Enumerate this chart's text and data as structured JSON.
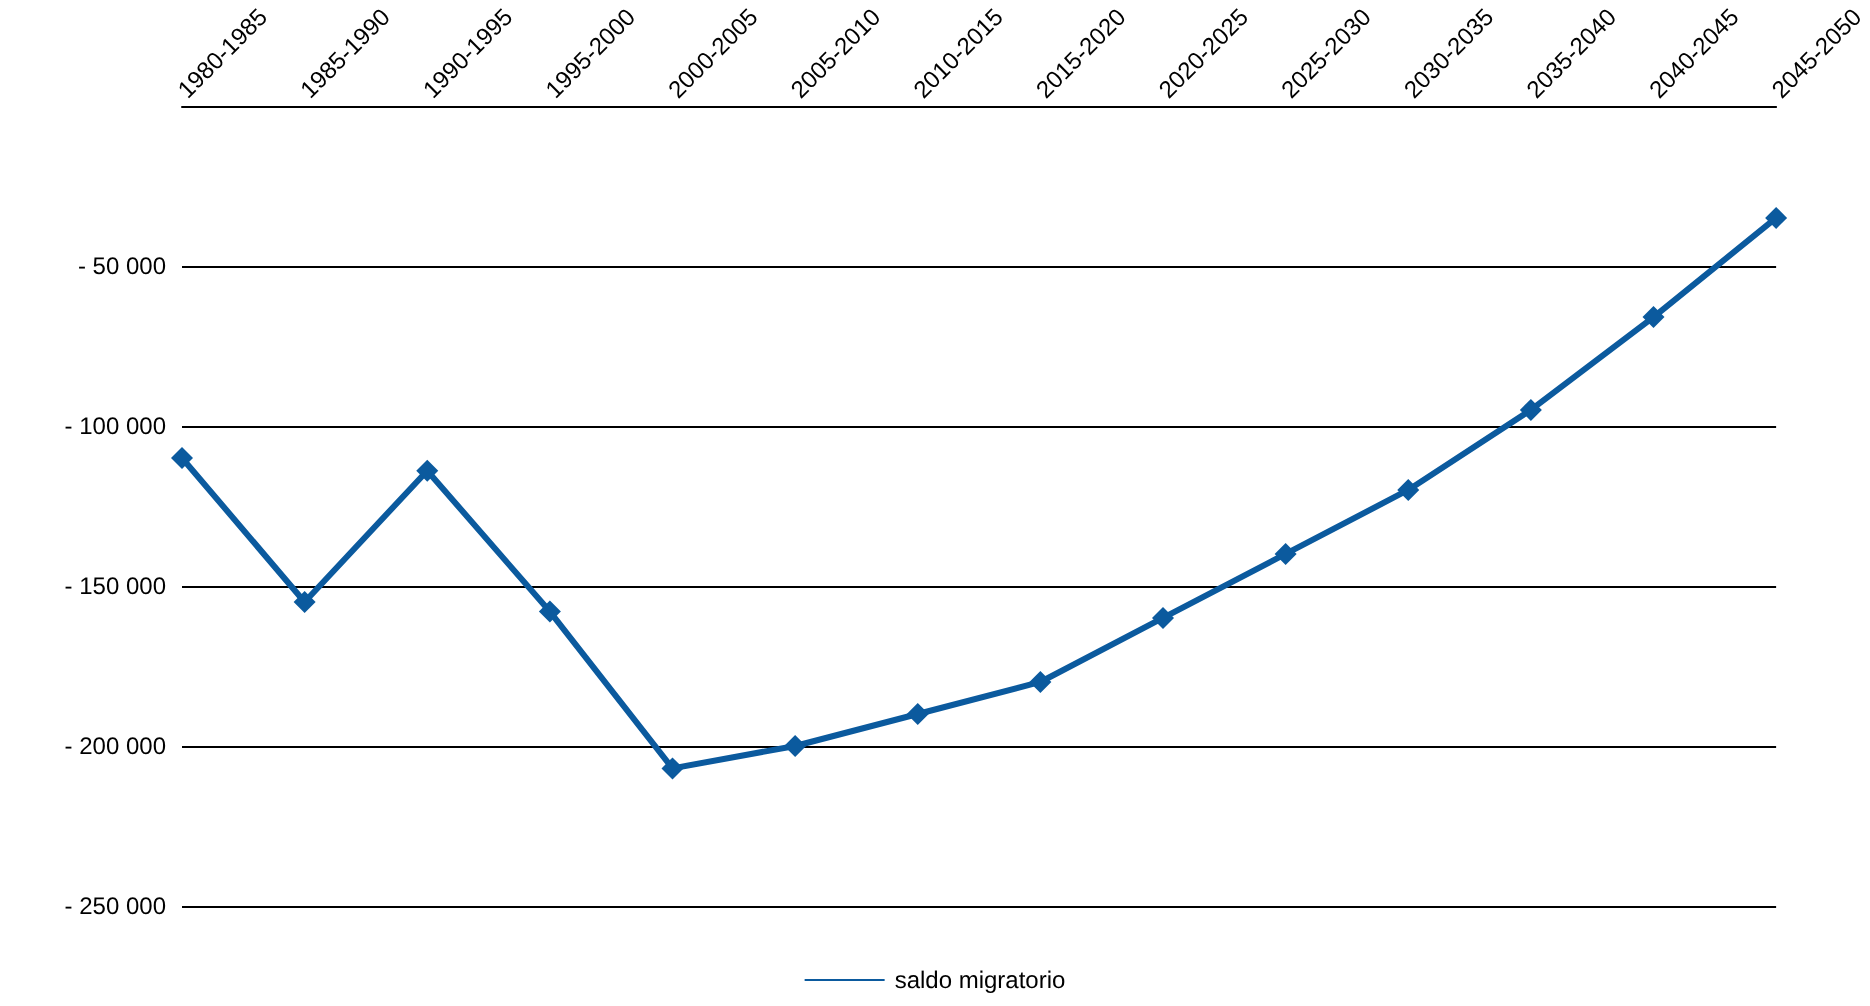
{
  "chart_data": {
    "type": "line",
    "categories": [
      "1980-1985",
      "1985-1990",
      "1990-1995",
      "1995-2000",
      "2000-2005",
      "2005-2010",
      "2010-2015",
      "2015-2020",
      "2020-2025",
      "2025-2030",
      "2030-2035",
      "2035-2040",
      "2040-2045",
      "2045-2050"
    ],
    "series": [
      {
        "name": "saldo migratorio",
        "color": "#0b5a9e",
        "values": [
          -110000,
          -155000,
          -114000,
          -158000,
          -207000,
          -200000,
          -190000,
          -180000,
          -160000,
          -140000,
          -120000,
          -95000,
          -66000,
          -35000
        ]
      }
    ],
    "ylim": [
      -250000,
      0
    ],
    "yticks": [
      {
        "value": -250000,
        "label": "- 250 000"
      },
      {
        "value": -200000,
        "label": "- 200 000"
      },
      {
        "value": -150000,
        "label": "- 150 000"
      },
      {
        "value": -100000,
        "label": "- 100 000"
      },
      {
        "value": -50000,
        "label": "- 50 000"
      }
    ],
    "grid": "y",
    "legend": "bottom",
    "marker": "diamond",
    "line_style": "solid"
  }
}
